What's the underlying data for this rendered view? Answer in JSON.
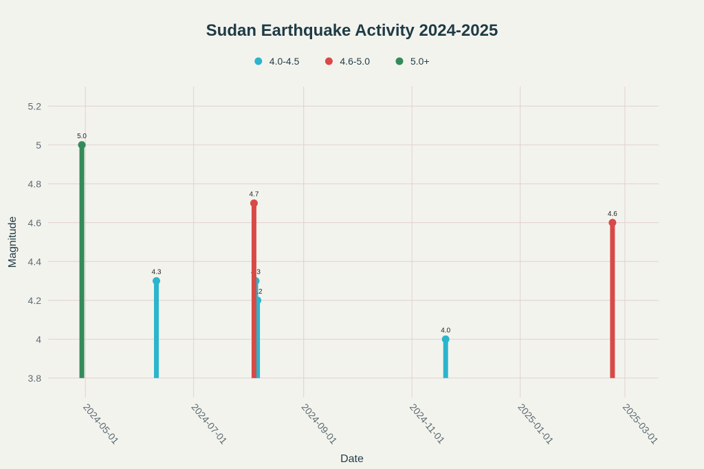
{
  "chart_data": {
    "type": "scatter",
    "title": "Sudan Earthquake Activity 2024-2025",
    "xlabel": "Date",
    "ylabel": "Magnitude",
    "ylim": [
      3.7,
      5.3
    ],
    "xlim": [
      "2024-04-10",
      "2025-03-20"
    ],
    "y_ticks": [
      3.8,
      4,
      4.2,
      4.4,
      4.6,
      4.8,
      5,
      5.2
    ],
    "y_tick_labels": [
      "3.8",
      "4",
      "4.2",
      "4.4",
      "4.6",
      "4.8",
      "5",
      "5.2"
    ],
    "x_ticks": [
      "2024-05-01",
      "2024-07-01",
      "2024-09-01",
      "2024-11-01",
      "2025-01-01",
      "2025-03-01"
    ],
    "baseline": 3.8,
    "grid": true,
    "legend_position": "top-center",
    "series": [
      {
        "name": "4.0-4.5",
        "color": "#2ab5cc",
        "points": [
          {
            "x": "2024-06-10",
            "y": 4.3,
            "label": "4.3"
          },
          {
            "x": "2024-08-05",
            "y": 4.3,
            "label": "4.3"
          },
          {
            "x": "2024-08-06",
            "y": 4.2,
            "label": "4.2"
          },
          {
            "x": "2024-11-20",
            "y": 4.0,
            "label": "4.0"
          }
        ]
      },
      {
        "name": "4.6-5.0",
        "color": "#d84a47",
        "points": [
          {
            "x": "2024-08-04",
            "y": 4.7,
            "label": "4.7"
          },
          {
            "x": "2025-02-22",
            "y": 4.6,
            "label": "4.6"
          }
        ]
      },
      {
        "name": "5.0+",
        "color": "#358a5a",
        "points": [
          {
            "x": "2024-04-29",
            "y": 5.0,
            "label": "5.0"
          }
        ]
      }
    ]
  }
}
